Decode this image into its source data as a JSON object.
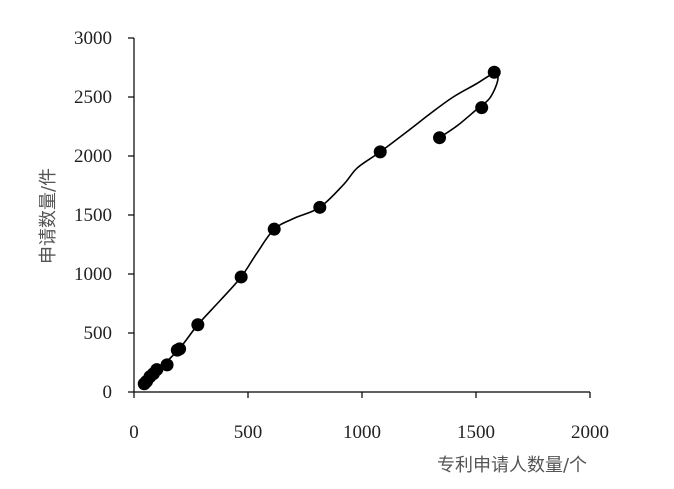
{
  "chart_data": {
    "type": "scatter",
    "title": "",
    "xlabel": "专利申请人数量/个",
    "ylabel": "申请数量/件",
    "xlim": [
      0,
      2000
    ],
    "ylim": [
      0,
      3000
    ],
    "x_ticks": [
      "0",
      "500",
      "1000",
      "1500",
      "2000"
    ],
    "y_ticks": [
      "0",
      "500",
      "1000",
      "1500",
      "2000",
      "2500",
      "3000"
    ],
    "grid": false,
    "legend": "none",
    "marker_color": "#000000",
    "series": [
      {
        "points": [
          {
            "x": 45,
            "y": 70
          },
          {
            "x": 55,
            "y": 90
          },
          {
            "x": 70,
            "y": 130
          },
          {
            "x": 85,
            "y": 155
          },
          {
            "x": 100,
            "y": 190
          },
          {
            "x": 145,
            "y": 230
          },
          {
            "x": 190,
            "y": 355
          },
          {
            "x": 200,
            "y": 365
          },
          {
            "x": 280,
            "y": 570
          },
          {
            "x": 470,
            "y": 975
          },
          {
            "x": 615,
            "y": 1380
          },
          {
            "x": 815,
            "y": 1565
          },
          {
            "x": 1080,
            "y": 2035
          },
          {
            "x": 1340,
            "y": 2155
          },
          {
            "x": 1525,
            "y": 2410
          },
          {
            "x": 1580,
            "y": 2710
          }
        ]
      }
    ],
    "trend_line": [
      {
        "x": 40,
        "y": 55
      },
      {
        "x": 100,
        "y": 175
      },
      {
        "x": 200,
        "y": 370
      },
      {
        "x": 280,
        "y": 570
      },
      {
        "x": 380,
        "y": 780
      },
      {
        "x": 470,
        "y": 975
      },
      {
        "x": 540,
        "y": 1180
      },
      {
        "x": 615,
        "y": 1380
      },
      {
        "x": 700,
        "y": 1470
      },
      {
        "x": 815,
        "y": 1565
      },
      {
        "x": 920,
        "y": 1760
      },
      {
        "x": 980,
        "y": 1900
      },
      {
        "x": 1080,
        "y": 2035
      },
      {
        "x": 1200,
        "y": 2210
      },
      {
        "x": 1300,
        "y": 2360
      },
      {
        "x": 1400,
        "y": 2500
      },
      {
        "x": 1500,
        "y": 2610
      },
      {
        "x": 1580,
        "y": 2700
      },
      {
        "x": 1595,
        "y": 2640
      },
      {
        "x": 1560,
        "y": 2490
      },
      {
        "x": 1500,
        "y": 2390
      },
      {
        "x": 1420,
        "y": 2260
      },
      {
        "x": 1340,
        "y": 2155
      }
    ]
  }
}
